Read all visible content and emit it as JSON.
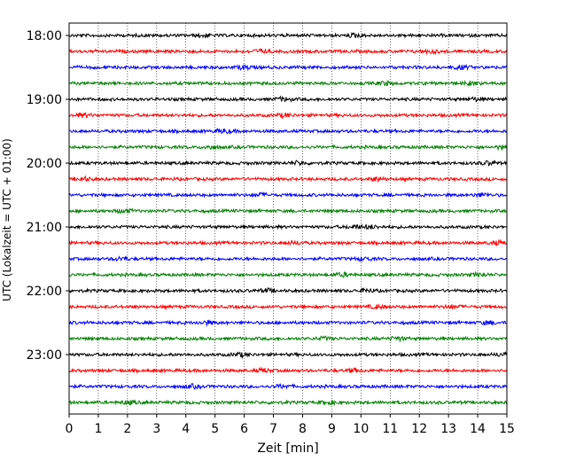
{
  "chart_data": {
    "type": "line",
    "title": "",
    "xlabel": "Zeit  [min]",
    "ylabel": "UTC (Lokalzeit = UTC + 01:00)",
    "xlim": [
      0,
      15
    ],
    "x_ticks": [
      "0",
      "1",
      "2",
      "3",
      "4",
      "5",
      "6",
      "7",
      "8",
      "9",
      "10",
      "11",
      "12",
      "13",
      "14",
      "15"
    ],
    "y_tick_labels": [
      "18:00",
      "19:00",
      "20:00",
      "21:00",
      "22:00",
      "23:00"
    ],
    "grid": "vertical-dotted",
    "legend": "none",
    "trace_colors": [
      "#000000",
      "#ff0000",
      "#0000ff",
      "#008000"
    ],
    "traces": [
      {
        "start": "18:00"
      },
      {
        "start": "18:15"
      },
      {
        "start": "18:30"
      },
      {
        "start": "18:45"
      },
      {
        "start": "19:00"
      },
      {
        "start": "19:15"
      },
      {
        "start": "19:30"
      },
      {
        "start": "19:45"
      },
      {
        "start": "20:00"
      },
      {
        "start": "20:15"
      },
      {
        "start": "20:30"
      },
      {
        "start": "20:45"
      },
      {
        "start": "21:00"
      },
      {
        "start": "21:15"
      },
      {
        "start": "21:30"
      },
      {
        "start": "21:45"
      },
      {
        "start": "22:00"
      },
      {
        "start": "22:15"
      },
      {
        "start": "22:30"
      },
      {
        "start": "22:45"
      },
      {
        "start": "23:00"
      },
      {
        "start": "23:15"
      },
      {
        "start": "23:30"
      },
      {
        "start": "23:45"
      }
    ]
  }
}
